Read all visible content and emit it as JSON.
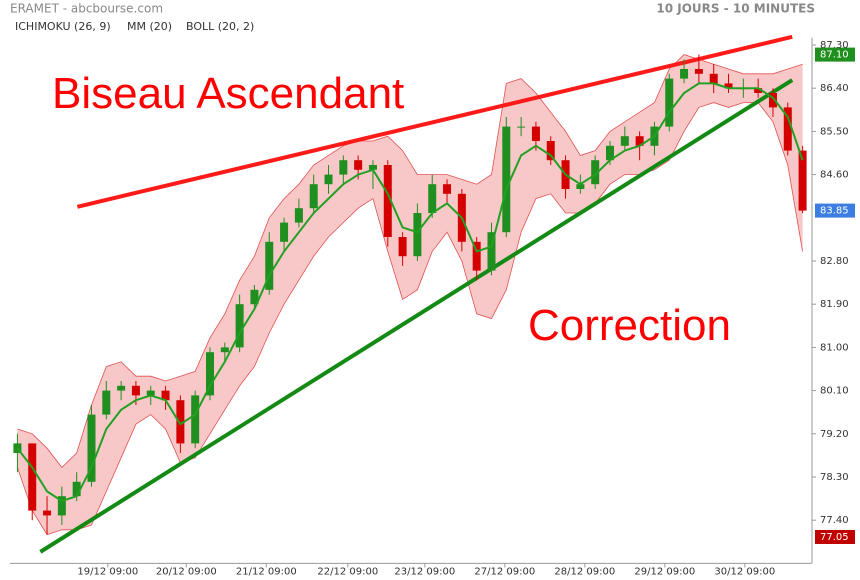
{
  "chart_data": {
    "type": "candlestick",
    "title": "ERAMET - abcbourse.com",
    "subtitle": "10 JOURS - 10 MINUTES",
    "indicators": [
      {
        "name": "ICHIMOKU (26, 9)",
        "color": "#000000"
      },
      {
        "name": "MM (20)",
        "color": "#22a022"
      },
      {
        "name": "BOLL (20, 2)",
        "color": "#e05050"
      }
    ],
    "annotations": [
      "Biseau Ascendant",
      "Correction"
    ],
    "up_color": "#1f8f1f",
    "down_color": "#d40000",
    "xlim": [
      -0.5,
      53.5
    ],
    "ylim": [
      76.5,
      87.45
    ],
    "xticks": [
      {
        "value": 6.1,
        "label": "19/12 09:00"
      },
      {
        "value": 11.4,
        "label": "20/12 09:00"
      },
      {
        "value": 16.8,
        "label": "21/12 09:00"
      },
      {
        "value": 22.3,
        "label": "22/12 09:00"
      },
      {
        "value": 27.5,
        "label": "23/12 09:00"
      },
      {
        "value": 32.9,
        "label": "27/12 09:00"
      },
      {
        "value": 38.3,
        "label": "28/12 09:00"
      },
      {
        "value": 43.7,
        "label": "29/12 09:00"
      },
      {
        "value": 49.1,
        "label": "30/12 09:00"
      }
    ],
    "yticks": [
      {
        "value": 87.3,
        "label": "87.30"
      },
      {
        "value": 86.4,
        "label": "86.40"
      },
      {
        "value": 85.5,
        "label": "85.50"
      },
      {
        "value": 84.6,
        "label": "84.60"
      },
      {
        "value": 82.8,
        "label": "82.80"
      },
      {
        "value": 81.9,
        "label": "81.90"
      },
      {
        "value": 81,
        "label": "81.00"
      },
      {
        "value": 80.1,
        "label": "80.10"
      },
      {
        "value": 79.2,
        "label": "79.20"
      },
      {
        "value": 78.3,
        "label": "78.30"
      },
      {
        "value": 77.4,
        "label": "77.40"
      }
    ],
    "price_tags": [
      {
        "value": 87.1,
        "label": "87.10",
        "color": "#1f8f1f"
      },
      {
        "value": 83.85,
        "label": "83.85",
        "color": "#3b7de0"
      },
      {
        "value": 77.05,
        "label": "77.05",
        "color": "#c00000"
      }
    ],
    "x": [
      0,
      1,
      2,
      3,
      4,
      5,
      6,
      7,
      8,
      9,
      10,
      11,
      12,
      13,
      14,
      15,
      16,
      17,
      18,
      19,
      20,
      21,
      22,
      23,
      24,
      25,
      26,
      27,
      28,
      29,
      30,
      31,
      32,
      33,
      34,
      35,
      36,
      37,
      38,
      39,
      40,
      41,
      42,
      43,
      44,
      45,
      46,
      47,
      48,
      49,
      50,
      51,
      52,
      53
    ],
    "candles": [
      [
        78.8,
        79.2,
        78.4,
        79.0
      ],
      [
        79.0,
        79.0,
        77.4,
        77.6
      ],
      [
        77.6,
        77.9,
        77.1,
        77.5
      ],
      [
        77.5,
        78.1,
        77.3,
        77.9
      ],
      [
        77.9,
        78.4,
        77.8,
        78.2
      ],
      [
        78.2,
        79.8,
        78.1,
        79.6
      ],
      [
        79.6,
        80.3,
        79.5,
        80.1
      ],
      [
        80.1,
        80.3,
        79.9,
        80.2
      ],
      [
        80.2,
        80.3,
        79.8,
        80.0
      ],
      [
        80.0,
        80.2,
        79.8,
        80.1
      ],
      [
        80.1,
        80.2,
        79.7,
        79.9
      ],
      [
        79.9,
        80.0,
        78.8,
        79.0
      ],
      [
        79.0,
        80.1,
        78.9,
        80.0
      ],
      [
        80.0,
        81.0,
        79.9,
        80.9
      ],
      [
        80.9,
        81.1,
        80.7,
        81.0
      ],
      [
        81.0,
        82.1,
        80.9,
        81.9
      ],
      [
        81.9,
        82.3,
        81.8,
        82.2
      ],
      [
        82.2,
        83.4,
        82.1,
        83.2
      ],
      [
        83.2,
        83.7,
        83.0,
        83.6
      ],
      [
        83.6,
        84.1,
        83.5,
        83.9
      ],
      [
        83.9,
        84.6,
        83.8,
        84.4
      ],
      [
        84.4,
        84.8,
        84.2,
        84.6
      ],
      [
        84.6,
        85.0,
        84.4,
        84.9
      ],
      [
        84.9,
        85.0,
        84.5,
        84.7
      ],
      [
        84.7,
        84.9,
        84.3,
        84.8
      ],
      [
        84.8,
        84.9,
        83.1,
        83.3
      ],
      [
        83.3,
        83.4,
        82.7,
        82.9
      ],
      [
        82.9,
        84.0,
        82.8,
        83.8
      ],
      [
        83.8,
        84.6,
        83.7,
        84.4
      ],
      [
        84.4,
        84.5,
        84.0,
        84.2
      ],
      [
        84.2,
        84.3,
        83.0,
        83.2
      ],
      [
        83.2,
        83.3,
        82.4,
        82.6
      ],
      [
        82.6,
        83.6,
        82.5,
        83.4
      ],
      [
        83.4,
        85.8,
        83.3,
        85.6
      ],
      [
        85.6,
        85.8,
        85.4,
        85.6
      ],
      [
        85.6,
        85.7,
        85.1,
        85.3
      ],
      [
        85.3,
        85.4,
        84.8,
        84.9
      ],
      [
        84.9,
        85.0,
        84.1,
        84.3
      ],
      [
        84.3,
        84.6,
        84.2,
        84.4
      ],
      [
        84.4,
        85.0,
        84.3,
        84.9
      ],
      [
        84.9,
        85.3,
        84.8,
        85.2
      ],
      [
        85.2,
        85.6,
        85.1,
        85.4
      ],
      [
        85.4,
        85.5,
        84.9,
        85.2
      ],
      [
        85.2,
        85.7,
        85.0,
        85.6
      ],
      [
        85.6,
        86.7,
        85.5,
        86.6
      ],
      [
        86.6,
        87.0,
        86.5,
        86.8
      ],
      [
        86.8,
        87.1,
        86.5,
        86.7
      ],
      [
        86.7,
        86.9,
        86.3,
        86.5
      ],
      [
        86.5,
        86.7,
        86.3,
        86.4
      ],
      [
        86.4,
        86.6,
        86.2,
        86.4
      ],
      [
        86.4,
        86.6,
        86.2,
        86.3
      ],
      [
        86.3,
        86.4,
        85.8,
        86.0
      ],
      [
        86.0,
        86.1,
        85.0,
        85.1
      ],
      [
        85.1,
        85.2,
        83.8,
        83.85
      ]
    ],
    "ma": [
      78.9,
      78.5,
      78.0,
      77.8,
      77.9,
      78.5,
      79.3,
      79.7,
      79.9,
      80.0,
      79.9,
      79.4,
      79.6,
      80.2,
      80.7,
      81.3,
      81.8,
      82.5,
      83.0,
      83.4,
      83.8,
      84.1,
      84.4,
      84.6,
      84.7,
      84.2,
      83.5,
      83.4,
      83.8,
      84.0,
      83.7,
      83.0,
      83.1,
      84.3,
      85.0,
      85.2,
      85.0,
      84.6,
      84.4,
      84.6,
      84.9,
      85.1,
      85.2,
      85.4,
      85.9,
      86.3,
      86.5,
      86.5,
      86.4,
      86.4,
      86.4,
      86.2,
      85.8,
      84.9
    ],
    "boll_upper": [
      79.3,
      79.2,
      78.9,
      78.5,
      78.8,
      79.8,
      80.6,
      80.7,
      80.4,
      80.4,
      80.3,
      80.4,
      80.5,
      81.2,
      81.7,
      82.4,
      82.9,
      83.7,
      84.1,
      84.4,
      84.8,
      85.0,
      85.2,
      85.3,
      85.3,
      85.4,
      85.1,
      84.6,
      84.6,
      84.6,
      84.5,
      84.4,
      84.6,
      86.5,
      86.6,
      86.3,
      85.9,
      85.5,
      85.0,
      85.1,
      85.5,
      85.7,
      85.9,
      86.1,
      86.8,
      87.1,
      87.0,
      86.9,
      86.8,
      86.7,
      86.7,
      86.7,
      86.8,
      86.9
    ],
    "boll_lower": [
      78.5,
      77.6,
      77.1,
      77.2,
      77.2,
      77.3,
      78.0,
      78.7,
      79.4,
      79.6,
      79.3,
      78.6,
      78.7,
      79.2,
      79.7,
      80.2,
      80.6,
      81.3,
      81.9,
      82.4,
      82.9,
      83.3,
      83.6,
      83.9,
      84.1,
      83.0,
      82.0,
      82.2,
      83.0,
      83.4,
      82.8,
      81.7,
      81.6,
      82.2,
      83.4,
      84.1,
      84.2,
      83.8,
      83.8,
      84.0,
      84.4,
      84.6,
      84.6,
      84.7,
      84.9,
      85.5,
      86.0,
      86.1,
      86.0,
      86.1,
      86.1,
      85.7,
      84.8,
      83.0
    ],
    "band_fill": "#f8c8c8",
    "trendlines": [
      {
        "x": [
          4.05,
          52.3
        ],
        "y": [
          83.93,
          87.47
        ],
        "color": "#ff1a1a"
      },
      {
        "x": [
          1.55,
          52.3
        ],
        "y": [
          76.74,
          86.57
        ],
        "color": "#138a13"
      }
    ]
  }
}
